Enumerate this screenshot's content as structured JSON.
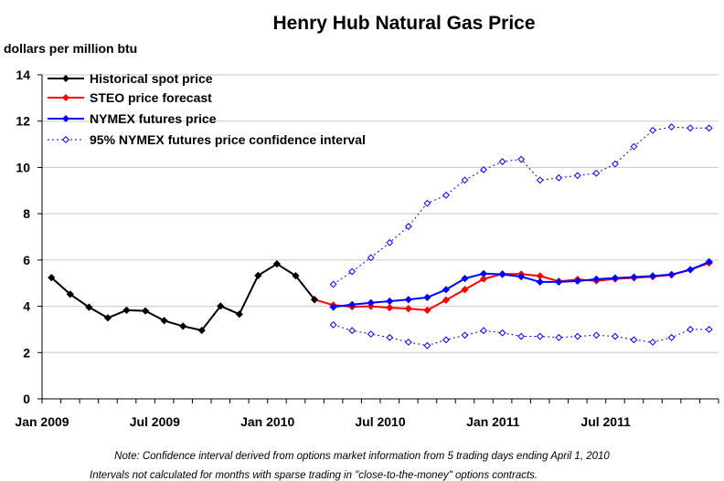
{
  "chart_data": {
    "type": "line",
    "title": "Henry Hub Natural Gas Price",
    "ylabel": "dollars per million btu",
    "ylim": [
      0,
      14
    ],
    "yticks": [
      0,
      2,
      4,
      6,
      8,
      10,
      12,
      14
    ],
    "x_start": "Jan 2009",
    "x_end": "Dec 2011",
    "xtick_labels": [
      "Jan 2009",
      "Jul 2009",
      "Jan 2010",
      "Jul 2010",
      "Jan 2011",
      "Jul 2011"
    ],
    "grid": "horizontal",
    "legend_position": "top-left",
    "series": [
      {
        "name": "Historical spot price",
        "color": "#000000",
        "style": "solid",
        "marker": "filled-diamond",
        "x": [
          "Jan 2009",
          "Feb 2009",
          "Mar 2009",
          "Apr 2009",
          "May 2009",
          "Jun 2009",
          "Jul 2009",
          "Aug 2009",
          "Sep 2009",
          "Oct 2009",
          "Nov 2009",
          "Dec 2009",
          "Jan 2010",
          "Feb 2010",
          "Mar 2010"
        ],
        "values": [
          5.24,
          4.52,
          3.96,
          3.5,
          3.83,
          3.8,
          3.38,
          3.14,
          2.96,
          4.01,
          3.66,
          5.33,
          5.83,
          5.32,
          4.29
        ]
      },
      {
        "name": "STEO price forecast",
        "color": "#ff0000",
        "style": "solid",
        "marker": "filled-diamond",
        "x": [
          "Mar 2010",
          "Apr 2010",
          "May 2010",
          "Jun 2010",
          "Jul 2010",
          "Aug 2010",
          "Sep 2010",
          "Oct 2010",
          "Nov 2010",
          "Dec 2010",
          "Jan 2011",
          "Feb 2011",
          "Mar 2011",
          "Apr 2011",
          "May 2011",
          "Jun 2011",
          "Jul 2011",
          "Aug 2011",
          "Sep 2011",
          "Oct 2011",
          "Nov 2011",
          "Dec 2011"
        ],
        "values": [
          4.29,
          4.05,
          3.98,
          4.0,
          3.94,
          3.9,
          3.83,
          4.27,
          4.72,
          5.18,
          5.4,
          5.39,
          5.31,
          5.08,
          5.16,
          5.1,
          5.18,
          5.23,
          5.28,
          5.36,
          5.58,
          5.87
        ]
      },
      {
        "name": "NYMEX futures price",
        "color": "#0000ff",
        "style": "solid",
        "marker": "filled-diamond",
        "x": [
          "Apr 2010",
          "May 2010",
          "Jun 2010",
          "Jul 2010",
          "Aug 2010",
          "Sep 2010",
          "Oct 2010",
          "Nov 2010",
          "Dec 2010",
          "Jan 2011",
          "Feb 2011",
          "Mar 2011",
          "Apr 2011",
          "May 2011",
          "Jun 2011",
          "Jul 2011",
          "Aug 2011",
          "Sep 2011",
          "Oct 2011",
          "Nov 2011",
          "Dec 2011"
        ],
        "values": [
          3.97,
          4.07,
          4.15,
          4.22,
          4.29,
          4.38,
          4.72,
          5.2,
          5.41,
          5.38,
          5.28,
          5.05,
          5.05,
          5.09,
          5.17,
          5.22,
          5.26,
          5.31,
          5.37,
          5.58,
          5.92
        ]
      },
      {
        "name": "95% NYMEX futures price confidence interval",
        "color": "#0000ff",
        "style": "dotted",
        "marker": "open-diamond",
        "x": [
          "Apr 2010",
          "May 2010",
          "Jun 2010",
          "Jul 2010",
          "Aug 2010",
          "Sep 2010",
          "Oct 2010",
          "Nov 2010",
          "Dec 2010",
          "Jan 2011",
          "Feb 2011",
          "Mar 2011",
          "Apr 2011",
          "May 2011",
          "Jun 2011",
          "Jul 2011",
          "Aug 2011",
          "Sep 2011",
          "Oct 2011",
          "Nov 2011",
          "Dec 2011"
        ],
        "upper": [
          4.95,
          5.5,
          6.1,
          6.75,
          7.45,
          8.45,
          8.8,
          9.45,
          9.9,
          10.25,
          10.35,
          9.45,
          9.55,
          9.65,
          9.75,
          10.15,
          10.9,
          11.6,
          11.75,
          11.7,
          11.7
        ],
        "lower": [
          3.2,
          2.95,
          2.8,
          2.65,
          2.45,
          2.3,
          2.55,
          2.75,
          2.95,
          2.85,
          2.7,
          2.7,
          2.65,
          2.7,
          2.75,
          2.7,
          2.55,
          2.45,
          2.65,
          3.0,
          3.0
        ]
      }
    ],
    "note": "Note: Confidence interval derived from options market information from 5 trading days ending April 1, 2010",
    "note2": "Intervals not calculated for months with sparse trading in \"close-to-the-money\" options contracts."
  }
}
